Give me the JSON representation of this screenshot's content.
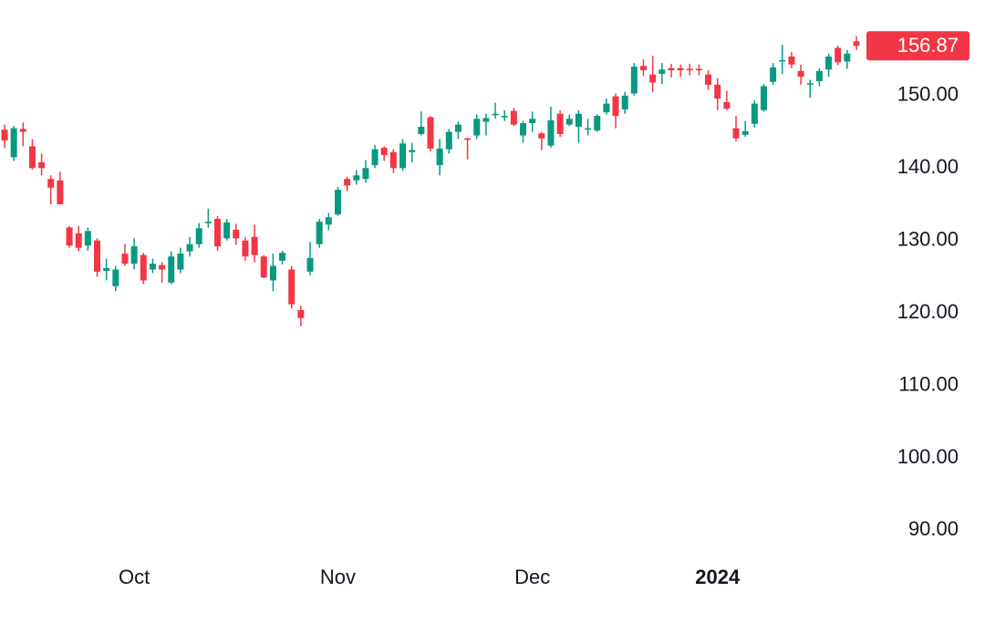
{
  "chart_data": {
    "type": "candlestick",
    "categories": [
      null,
      null,
      null,
      null,
      null,
      null,
      null,
      null,
      null,
      null,
      null,
      null,
      null,
      null,
      "Oct",
      null,
      null,
      null,
      null,
      null,
      null,
      null,
      null,
      null,
      null,
      null,
      null,
      null,
      null,
      null,
      null,
      null,
      null,
      null,
      null,
      null,
      "Nov",
      null,
      null,
      null,
      null,
      null,
      null,
      null,
      null,
      null,
      null,
      null,
      null,
      null,
      null,
      null,
      null,
      null,
      null,
      null,
      null,
      "Dec",
      null,
      null,
      null,
      null,
      null,
      null,
      null,
      null,
      null,
      null,
      null,
      null,
      null,
      null,
      null,
      null,
      null,
      null,
      null,
      "2024",
      null,
      null,
      null,
      null,
      null,
      null,
      null,
      null,
      null,
      null,
      null,
      null,
      null,
      null,
      null
    ],
    "open": [
      145.3,
      141.5,
      145.4,
      143,
      140.8,
      138.5,
      138.3,
      131.8,
      131,
      129.3,
      130,
      125.8,
      123.7,
      128.2,
      126.8,
      128,
      126,
      126.6,
      124.2,
      126,
      128.5,
      129.5,
      132.4,
      133,
      130.3,
      131.5,
      130,
      130.5,
      127.8,
      124.5,
      127.2,
      126,
      120.4,
      125.7,
      129.5,
      132.2,
      133.6,
      138.5,
      138.3,
      138.5,
      140.4,
      142.8,
      142.2,
      140,
      142.2,
      144.7,
      147,
      140.4,
      142.6,
      145,
      144.1,
      144.5,
      146.4,
      147.3,
      147,
      147.9,
      144.5,
      146.2,
      144.8,
      143.1,
      147.5,
      146,
      145.7,
      145.3,
      145.2,
      147.7,
      149.9,
      148.1,
      150.3,
      154.1,
      152.9,
      153,
      153.8,
      153.8,
      153.7,
      153.7,
      152.9,
      151.5,
      149.1,
      145.5,
      144.6,
      146.1,
      148,
      151.9,
      154.8,
      155.4,
      153.4,
      151.5,
      152,
      153.6,
      156.6,
      154.7,
      157.5
    ],
    "high": [
      146,
      145.8,
      146.3,
      144,
      142,
      139,
      139.5,
      132,
      132,
      131.8,
      130.3,
      127.5,
      126.5,
      129.5,
      130.3,
      128.3,
      127.5,
      127,
      128.5,
      129,
      130.5,
      132.4,
      134.4,
      133.4,
      133,
      132.3,
      130.5,
      132.2,
      128,
      128.2,
      128.6,
      126.5,
      121,
      129.8,
      133,
      133.8,
      137.4,
      138.8,
      139.7,
      141.1,
      143.2,
      143,
      142.6,
      144,
      143.5,
      147.8,
      147.2,
      144,
      145.4,
      146.4,
      144.2,
      147.4,
      147.5,
      149,
      148,
      148.3,
      146.5,
      147.8,
      145,
      148.5,
      148,
      147.4,
      148,
      146.8,
      147.4,
      149.6,
      150.3,
      150.5,
      154.5,
      155,
      155.5,
      154.5,
      154.4,
      154.3,
      154.4,
      154.3,
      153.5,
      152.4,
      150.7,
      147.2,
      146.5,
      149.4,
      151.6,
      154.5,
      157,
      156,
      154.3,
      152.2,
      153.8,
      155.8,
      156.9,
      156.3,
      158.2
    ],
    "low": [
      142.8,
      141,
      143,
      139.8,
      139,
      135,
      135,
      129,
      128.5,
      128.6,
      125,
      124.5,
      123,
      126.5,
      126,
      124,
      125.5,
      124.2,
      124,
      125.5,
      127.8,
      129,
      131.8,
      128.6,
      130,
      129.4,
      127.2,
      127,
      124.8,
      123,
      126.7,
      120.6,
      118.2,
      125.2,
      129,
      131.4,
      133.4,
      136.8,
      137.7,
      138,
      140,
      141,
      139.3,
      139.6,
      140.8,
      144.5,
      142.3,
      139,
      142,
      144,
      141.2,
      144,
      144.5,
      146.8,
      146.5,
      145.8,
      143.5,
      145,
      142.5,
      142.8,
      144.3,
      145.8,
      143.5,
      144.5,
      145,
      147.4,
      145.5,
      147.5,
      150,
      152.7,
      150.5,
      151.6,
      152.5,
      152.6,
      152.8,
      152.8,
      150.8,
      148,
      148,
      143.7,
      144.3,
      145.6,
      147.8,
      151.5,
      153,
      153.8,
      151.5,
      149.7,
      151.3,
      152.6,
      154.2,
      153.7,
      156.3
    ],
    "close": [
      143.8,
      145.5,
      145,
      140,
      140,
      137.3,
      135,
      129.3,
      129,
      131.3,
      125.7,
      126.2,
      126,
      126.8,
      129.2,
      124.5,
      126.8,
      126,
      127.8,
      128.2,
      129.5,
      131.7,
      132.6,
      129.2,
      132.5,
      130.3,
      127.8,
      128,
      124.9,
      126.5,
      128.3,
      121.2,
      119.3,
      127.6,
      132.6,
      133.2,
      137,
      137.6,
      139,
      140,
      142.6,
      141.8,
      140,
      143.4,
      142.5,
      145.7,
      142.7,
      142.7,
      145,
      146,
      143.9,
      146.8,
      146.9,
      147.5,
      147.2,
      146,
      146.2,
      146.8,
      144.1,
      146.6,
      144.7,
      146.8,
      147.5,
      145.5,
      147.2,
      148.9,
      147.2,
      150,
      154,
      153.5,
      151.8,
      153.6,
      153.5,
      153.5,
      153.5,
      153.5,
      151.5,
      149.6,
      148.2,
      144.1,
      145.1,
      148.9,
      151.3,
      153.9,
      154.9,
      154.3,
      152.6,
      151.7,
      153.4,
      155.4,
      154.6,
      155.8,
      156.87
    ],
    "up_color": "#089981",
    "down_color": "#f23645",
    "ylim": [
      86.4,
      163.2
    ],
    "yticks": [
      {
        "value": 90,
        "label": "90.00"
      },
      {
        "value": 100,
        "label": "100.00"
      },
      {
        "value": 110,
        "label": "110.00"
      },
      {
        "value": 120,
        "label": "120.00"
      },
      {
        "value": 130,
        "label": "130.00"
      },
      {
        "value": 140,
        "label": "140.00"
      },
      {
        "value": 150,
        "label": "150.00"
      }
    ]
  }
}
